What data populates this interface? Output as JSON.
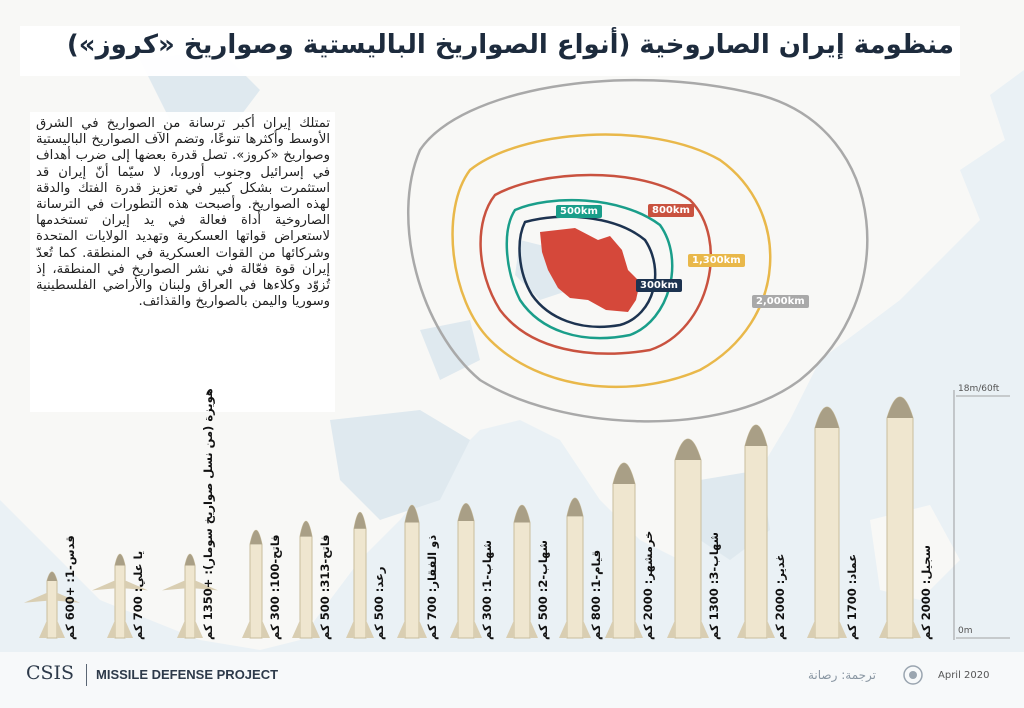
{
  "title": "منظومة إيران الصاروخية (أنواع الصواريخ الباليستية وصواريخ «كروز»)",
  "intro_text": "تمتلك إيران أكبر ترسانة من الصواريخ في الشرق الأوسط وأكثرها تنوعًا، وتضم الآف الصواريخ الباليستية وصواريخ «كروز». تصل قدرة بعضها إلى ضرب أهداف في إسرائيل وجنوب أوروبا، لا سيّما أنّ إيران قد استثمرت بشكل كبير في تعزيز قدرة الفتك والدقة لهذه الصواريخ. وأصبحت هذه التطورات في الترسانة الصاروخية أداة فعالة في يد إيران تستخدمها لاستعراض قواتها العسكرية وتهديد الولايات المتحدة وشركائها من القوات العسكرية في المنطقة. كما تُعدّ إيران قوة فعّالة في نشر الصواريخ في المنطقة، إذ تُزوّد وكلاءها في العراق ولبنان والأراضي الفلسطينية وسوريا واليمن بالصواريخ والقذائف.",
  "ranges": [
    {
      "label": "300km",
      "color": "#1d3350"
    },
    {
      "label": "500km",
      "color": "#1a9e8a"
    },
    {
      "label": "800km",
      "color": "#c9523f"
    },
    {
      "label": "1,300km",
      "color": "#e9b84a"
    },
    {
      "label": "2,000km",
      "color": "#a9a9a9"
    }
  ],
  "scale": {
    "top": "18m/60ft",
    "bottom": "0m"
  },
  "missiles": [
    {
      "label": "قدس-1: +600 كم",
      "type": "cruise"
    },
    {
      "label": "يا علي: 700 كم",
      "type": "cruise"
    },
    {
      "label": "هويزة (من نسل صواريخ سومار): +1350 كم",
      "type": "cruise"
    },
    {
      "label": "فاتح-100: 300 كم",
      "type": "ballistic"
    },
    {
      "label": "فاتح-313: 500 كم",
      "type": "ballistic"
    },
    {
      "label": "رعد: 500 كم",
      "type": "ballistic"
    },
    {
      "label": "ذو الفقار: 700 كم",
      "type": "ballistic"
    },
    {
      "label": "شهاب-1: 300 كم",
      "type": "ballistic"
    },
    {
      "label": "شهاب-2: 500 كم",
      "type": "ballistic"
    },
    {
      "label": "قيام-1: 800 كم",
      "type": "ballistic"
    },
    {
      "label": "خرمشهر: 2000 كم",
      "type": "ballistic"
    },
    {
      "label": "شهاب-3: 1300 كم",
      "type": "ballistic"
    },
    {
      "label": "غدير: 2000 كم",
      "type": "ballistic"
    },
    {
      "label": "عماد: 1700 كم",
      "type": "ballistic"
    },
    {
      "label": "سجيل: 2000 كم",
      "type": "ballistic"
    }
  ],
  "footer": {
    "org": "CSIS",
    "project": "MISSILE DEFENSE PROJECT",
    "credit": "ترجمة: رصانة",
    "date": "April 2020"
  }
}
